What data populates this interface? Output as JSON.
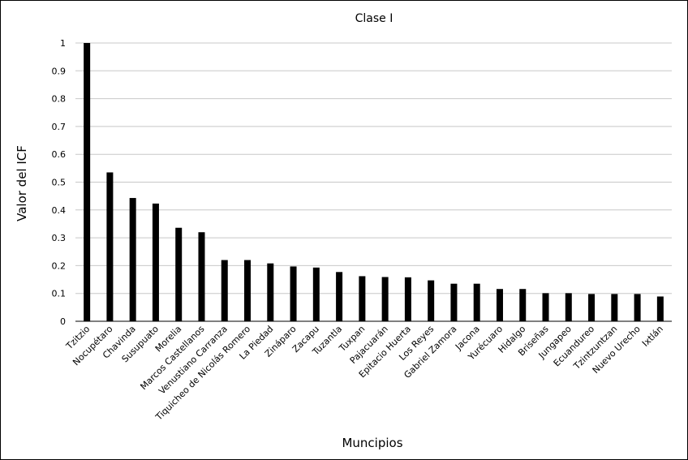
{
  "chart_data": {
    "type": "bar",
    "title": "Clase I",
    "xlabel": "Muncipios",
    "ylabel": "Valor del ICF",
    "ylim": [
      0,
      1
    ],
    "yticks": [
      "0",
      "0.1",
      "0.2",
      "0.3",
      "0.4",
      "0.5",
      "0.6",
      "0.7",
      "0.8",
      "0.9",
      "1"
    ],
    "grid": true,
    "legend": "none",
    "bar_color": "#000000",
    "categories": [
      "Tzitzio",
      "Nocupétaro",
      "Chavinda",
      "Susupuato",
      "Morelia",
      "Marcos Castellanos",
      "Venustiano Carranza",
      "Tiquicheo de Nicolás Romero",
      "La Piedad",
      "Zináparo",
      "Zacapu",
      "Tuzantla",
      "Tuxpan",
      "Pajacuarán",
      "Epitacio Huerta",
      "Los Reyes",
      "Gabriel Zamora",
      "Jacona",
      "Yurécuaro",
      "Hidalgo",
      "Briseñas",
      "Jungapeo",
      "Ecuandureo",
      "Tzintzuntzan",
      "Nuevo Urecho",
      "Ixtlán"
    ],
    "values": [
      1.0,
      0.535,
      0.443,
      0.423,
      0.336,
      0.32,
      0.22,
      0.22,
      0.208,
      0.197,
      0.193,
      0.177,
      0.162,
      0.159,
      0.158,
      0.147,
      0.135,
      0.135,
      0.116,
      0.116,
      0.101,
      0.101,
      0.098,
      0.098,
      0.098,
      0.089
    ]
  }
}
